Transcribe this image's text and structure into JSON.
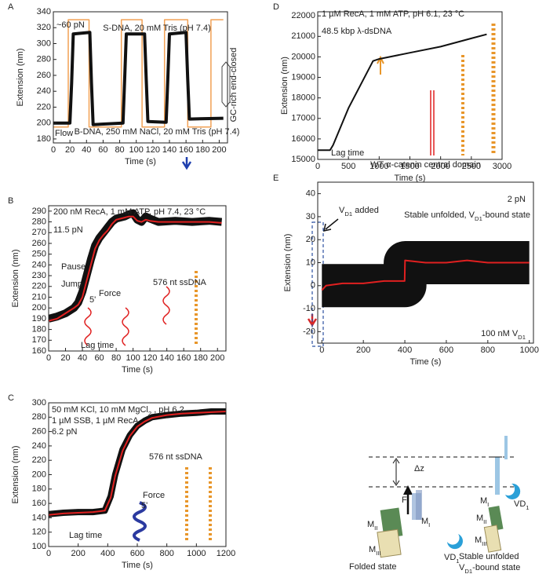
{
  "chart_data": [
    {
      "type": "line",
      "label": "A",
      "xlabel": "Time (s)",
      "ylabel": "Extension (nm)",
      "xlim": [
        0,
        210
      ],
      "ylim": [
        175,
        340
      ],
      "xticks": [
        0,
        20,
        40,
        60,
        80,
        100,
        120,
        140,
        160,
        180,
        200
      ],
      "yticks": [
        180,
        200,
        220,
        240,
        260,
        280,
        300,
        320,
        340
      ],
      "series": [
        {
          "color": "#f2a154",
          "x": [
            0,
            18,
            18,
            43,
            43,
            82,
            82,
            107,
            107,
            134,
            134,
            162,
            162,
            190,
            190,
            205
          ],
          "values": [
            195,
            195,
            330,
            330,
            195,
            195,
            330,
            330,
            195,
            195,
            330,
            330,
            195,
            195,
            330,
            330
          ]
        },
        {
          "color": "#111111",
          "x": [
            0,
            20,
            22,
            24,
            44,
            46,
            48,
            84,
            86,
            88,
            110,
            112,
            114,
            136,
            138,
            140,
            160,
            162,
            164,
            205
          ],
          "values": [
            200,
            200,
            250,
            312,
            314,
            250,
            198,
            200,
            255,
            312,
            312,
            255,
            202,
            201,
            255,
            312,
            314,
            255,
            205,
            206
          ]
        }
      ],
      "annotations": [
        {
          "text": "~60 pN",
          "color": "#111111"
        },
        {
          "text": "S-DNA, 20 mM Tris (pH 7.4)",
          "color": "#d62728"
        },
        {
          "text": "B-DNA, 250 mM NaCl, 20 mM Tris (pH 7.4)",
          "color": "#2b4fa0"
        },
        {
          "text": "Flow",
          "color": "#e8962a"
        },
        {
          "text": "GC-rich end-closed",
          "color": "#111111"
        }
      ]
    },
    {
      "type": "line",
      "label": "B",
      "xlabel": "Time (s)",
      "ylabel": "Extension (nm)",
      "xlim": [
        0,
        210
      ],
      "ylim": [
        160,
        295
      ],
      "xticks": [
        0,
        20,
        40,
        60,
        80,
        100,
        120,
        140,
        160,
        180,
        200
      ],
      "yticks": [
        160,
        170,
        180,
        190,
        200,
        210,
        220,
        230,
        240,
        250,
        260,
        270,
        280,
        290
      ],
      "series": [
        {
          "color": "#111111",
          "x": [
            0,
            10,
            20,
            30,
            35,
            40,
            45,
            50,
            55,
            60,
            65,
            70,
            75,
            80,
            90,
            95,
            100,
            105,
            110,
            115,
            120,
            130,
            150,
            170,
            190,
            205
          ],
          "values": [
            190,
            192,
            195,
            200,
            205,
            215,
            230,
            245,
            258,
            265,
            270,
            275,
            280,
            283,
            285,
            287,
            288,
            282,
            280,
            285,
            283,
            280,
            281,
            280,
            281,
            280
          ]
        },
        {
          "color": "#e02020",
          "x": [
            0,
            10,
            20,
            30,
            35,
            40,
            45,
            50,
            55,
            60,
            65,
            70,
            75,
            80,
            90,
            95,
            100,
            105,
            110,
            115,
            120,
            130,
            150,
            170,
            190,
            205
          ],
          "values": [
            188,
            190,
            195,
            200,
            203,
            210,
            225,
            240,
            255,
            263,
            268,
            272,
            278,
            282,
            284,
            285,
            285,
            281,
            280,
            282,
            281,
            280,
            280,
            280,
            280,
            279
          ]
        }
      ],
      "annotations": [
        {
          "text": "200 nM RecA, 1 mM ATP, pH 7.4, 23 °C",
          "color": "#111111"
        },
        {
          "text": "11.5 pN",
          "color": "#111111"
        },
        {
          "text": "576 nt ssDNA",
          "color": "#111111"
        },
        {
          "text": "Pause",
          "color": "#e8962a"
        },
        {
          "text": "Jump",
          "color": "#e8962a"
        },
        {
          "text": "Lag time",
          "color": "#d62fa0"
        },
        {
          "text": "5'",
          "color": "#e02020"
        },
        {
          "text": "Force",
          "color": "#111111"
        }
      ]
    },
    {
      "type": "line",
      "label": "C",
      "xlabel": "Time (s)",
      "ylabel": "Extension (nm)",
      "xlim": [
        0,
        1200
      ],
      "ylim": [
        100,
        300
      ],
      "xticks": [
        0,
        200,
        400,
        600,
        800,
        1000,
        1200
      ],
      "yticks": [
        100,
        120,
        140,
        160,
        180,
        200,
        220,
        240,
        260,
        280,
        300
      ],
      "series": [
        {
          "color": "#111111",
          "x": [
            0,
            100,
            200,
            300,
            380,
            420,
            450,
            500,
            550,
            600,
            650,
            700,
            800,
            900,
            1000,
            1100,
            1200
          ],
          "values": [
            145,
            147,
            148,
            148,
            150,
            170,
            200,
            235,
            255,
            268,
            275,
            280,
            283,
            285,
            286,
            288,
            288
          ]
        },
        {
          "color": "#e02020",
          "x": [
            0,
            100,
            200,
            300,
            380,
            420,
            450,
            500,
            550,
            600,
            650,
            700,
            800,
            900,
            1000,
            1100,
            1200
          ],
          "values": [
            144,
            146,
            147,
            148,
            150,
            168,
            198,
            233,
            254,
            267,
            274,
            279,
            283,
            285,
            286,
            287,
            288
          ]
        }
      ],
      "annotations": [
        {
          "text": [
            "50 mM KCl, 10 mM MgCl",
            "2",
            " , pH 6.2"
          ],
          "color": "#111111"
        },
        {
          "text": "1 µM SSB, 1 µM RecA",
          "color": "#111111"
        },
        {
          "text": "6.2 pN",
          "color": "#111111"
        },
        {
          "text": "576 nt ssDNA",
          "color": "#111111"
        },
        {
          "text": "Lag time",
          "color": "#d62fa0"
        },
        {
          "text": "Force",
          "color": "#111111"
        },
        {
          "text": "5'",
          "color": "#e02020"
        }
      ]
    },
    {
      "type": "line",
      "label": "D",
      "xlabel": "Time (s)",
      "ylabel": "Extension (nm)",
      "xlim": [
        0,
        3000
      ],
      "ylim": [
        15000,
        22200
      ],
      "xticks": [
        0,
        500,
        1000,
        1500,
        2000,
        2500,
        3000
      ],
      "yticks": [
        15000,
        16000,
        17000,
        18000,
        19000,
        20000,
        21000,
        22000
      ],
      "series": [
        {
          "color": "#111111",
          "x": [
            0,
            200,
            250,
            500,
            900,
            1000,
            1500,
            2000,
            2500,
            2750
          ],
          "values": [
            15450,
            15450,
            15700,
            17500,
            19800,
            19900,
            20200,
            20500,
            20900,
            21100
          ]
        }
      ],
      "annotations": [
        {
          "text": "1 µM RecA, 1 mM ATP, pH 6.1, 23 °C",
          "color": "#111111"
        },
        {
          "text": "48.5 kbp λ-dsDNA",
          "color": "#111111"
        },
        {
          "text": "Lag time",
          "color": "#d62fa0"
        }
      ]
    },
    {
      "type": "line",
      "label": "E",
      "title": "WT α-catenin central domain",
      "xlabel": "Time (s)",
      "ylabel": "Extension (nm)",
      "xlim": [
        -20,
        1020
      ],
      "ylim": [
        -25,
        45
      ],
      "xticks": [
        0,
        200,
        400,
        600,
        800,
        1000
      ],
      "yticks": [
        -20,
        -10,
        0,
        10,
        20,
        30,
        40
      ],
      "series": [
        {
          "color": "#111111",
          "x": [
            0,
            5,
            400,
            402,
            1000
          ],
          "values": [
            0,
            0,
            0,
            10,
            10
          ]
        },
        {
          "color": "#e02020",
          "x": [
            0,
            20,
            100,
            200,
            300,
            399,
            401,
            500,
            600,
            700,
            800,
            900,
            1000
          ],
          "values": [
            -2,
            0,
            1,
            1,
            2,
            2,
            11,
            10,
            10,
            11,
            10,
            10,
            10
          ]
        }
      ],
      "annotations": [
        {
          "text": "2 pN",
          "color": "#111111"
        },
        {
          "text": [
            "Stable unfolded, V",
            "D1",
            "-bound state"
          ],
          "color": "#e02020"
        },
        {
          "text": [
            "V",
            "D1",
            " added"
          ],
          "color": "#111111"
        },
        {
          "text": [
            "100 nM V",
            "D1"
          ],
          "color": "#111111"
        }
      ]
    }
  ],
  "diagram": {
    "force": "F",
    "delta": "Δz",
    "folded": {
      "m1": [
        "M",
        "I"
      ],
      "m2": [
        "M",
        "II"
      ],
      "m3": [
        "M",
        "III"
      ],
      "vd1": [
        "VD",
        "1"
      ],
      "label": "Folded state"
    },
    "bound": {
      "m1": [
        "M",
        "I"
      ],
      "vd1": [
        "VD",
        "1"
      ],
      "m2": [
        "M",
        "II"
      ],
      "m3": [
        "M",
        "III"
      ],
      "label1": "Stable unfolded",
      "label2": [
        "V",
        "D1",
        "-bound state"
      ]
    }
  }
}
